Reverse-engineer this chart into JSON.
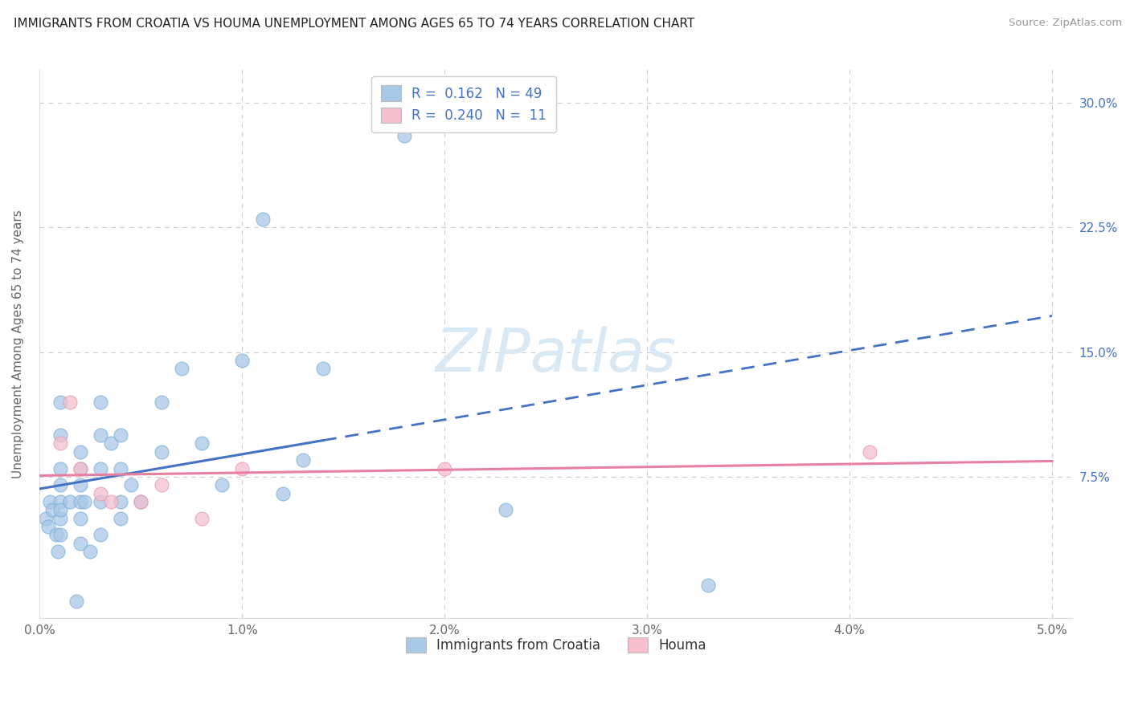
{
  "title": "IMMIGRANTS FROM CROATIA VS HOUMA UNEMPLOYMENT AMONG AGES 65 TO 74 YEARS CORRELATION CHART",
  "source": "Source: ZipAtlas.com",
  "ylabel": "Unemployment Among Ages 65 to 74 years",
  "xlim": [
    0.0,
    0.051
  ],
  "ylim": [
    -0.01,
    0.32
  ],
  "xticks": [
    0.0,
    0.01,
    0.02,
    0.03,
    0.04,
    0.05
  ],
  "yticks": [
    0.0,
    0.075,
    0.15,
    0.225,
    0.3
  ],
  "ytick_labels_right": [
    "",
    "7.5%",
    "15.0%",
    "22.5%",
    "30.0%"
  ],
  "xtick_labels": [
    "0.0%",
    "1.0%",
    "2.0%",
    "3.0%",
    "4.0%",
    "5.0%"
  ],
  "series1_label": "Immigrants from Croatia",
  "series1_R": "0.162",
  "series1_N": "49",
  "series1_fill": "#a8c8e8",
  "series1_edge": "#7aadd4",
  "series2_label": "Houma",
  "series2_R": "0.240",
  "series2_N": "11",
  "series2_fill": "#f5bfce",
  "series2_edge": "#e896b2",
  "trendline1_color": "#4472c4",
  "trendline2_color": "#e87fa0",
  "grid_color": "#cccccc",
  "bg": "#ffffff",
  "watermark_text": "ZIPatlas",
  "watermark_color": "#d8e8f5",
  "right_tick_color": "#4472c4",
  "series1_x": [
    0.0003,
    0.0004,
    0.0005,
    0.0006,
    0.0008,
    0.0009,
    0.001,
    0.001,
    0.001,
    0.001,
    0.001,
    0.001,
    0.001,
    0.001,
    0.0015,
    0.0018,
    0.002,
    0.002,
    0.002,
    0.002,
    0.002,
    0.002,
    0.0022,
    0.0025,
    0.003,
    0.003,
    0.003,
    0.003,
    0.003,
    0.0035,
    0.004,
    0.004,
    0.004,
    0.004,
    0.0045,
    0.005,
    0.006,
    0.006,
    0.007,
    0.008,
    0.009,
    0.01,
    0.011,
    0.012,
    0.013,
    0.014,
    0.018,
    0.023,
    0.033
  ],
  "series1_y": [
    0.05,
    0.045,
    0.06,
    0.055,
    0.04,
    0.03,
    0.08,
    0.07,
    0.06,
    0.05,
    0.04,
    0.055,
    0.1,
    0.12,
    0.06,
    0.0,
    0.09,
    0.08,
    0.07,
    0.06,
    0.05,
    0.035,
    0.06,
    0.03,
    0.12,
    0.1,
    0.08,
    0.06,
    0.04,
    0.095,
    0.1,
    0.08,
    0.06,
    0.05,
    0.07,
    0.06,
    0.12,
    0.09,
    0.14,
    0.095,
    0.07,
    0.145,
    0.23,
    0.065,
    0.085,
    0.14,
    0.28,
    0.055,
    0.01
  ],
  "series2_x": [
    0.001,
    0.0015,
    0.002,
    0.003,
    0.0035,
    0.005,
    0.006,
    0.008,
    0.01,
    0.02,
    0.041
  ],
  "series2_y": [
    0.095,
    0.12,
    0.08,
    0.065,
    0.06,
    0.06,
    0.07,
    0.05,
    0.08,
    0.08,
    0.09
  ],
  "croatia_solid_xlim": [
    0.0003,
    0.014
  ],
  "croatia_dash_xlim": [
    0.014,
    0.05
  ],
  "houma_line_xlim": [
    0.0,
    0.05
  ]
}
